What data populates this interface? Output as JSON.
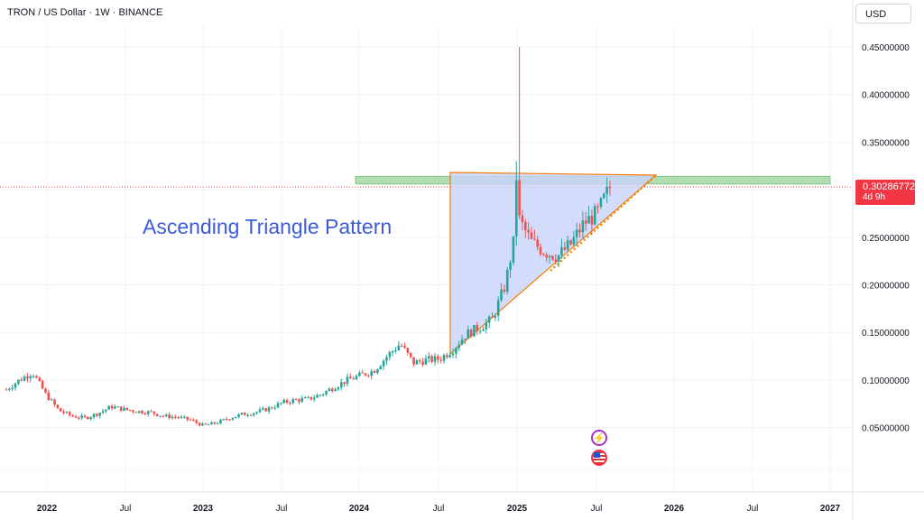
{
  "header": {
    "title": "TRON / US Dollar · 1W · BINANCE"
  },
  "currency": {
    "label": "USD"
  },
  "annotation": {
    "text": "Ascending Triangle Pattern"
  },
  "price_tag": {
    "price": "0.30286772",
    "countdown": "4d 9h"
  },
  "icons": {
    "event1": "lightning-icon",
    "event2": "us-flag-icon"
  },
  "colors": {
    "up": "#26a69a",
    "down": "#ef5350",
    "triangle_fill": "#c9d3fb",
    "triangle_line": "#f57c00",
    "resistance": "#81c784",
    "annotation": "#3d5bd9",
    "price_tag": "#f23645"
  },
  "chart_data": {
    "type": "candlestick",
    "title": "TRON / US Dollar · 1W · BINANCE",
    "x_ticks": [
      "2022",
      "Jul",
      "2023",
      "Jul",
      "2024",
      "Jul",
      "2025",
      "Jul",
      "2026",
      "Jul",
      "2027"
    ],
    "y_ticks": [
      "0.05000000",
      "0.10000000",
      "0.15000000",
      "0.20000000",
      "0.25000000",
      "0.30000000",
      "0.35000000",
      "0.40000000",
      "0.45000000"
    ],
    "ylim": [
      0.0,
      0.48
    ],
    "xlim": [
      "2021-09",
      "2027-03"
    ],
    "grid": true,
    "current_price": 0.30286772,
    "resistance_zone": [
      0.306,
      0.314
    ],
    "triangle": {
      "apex": [
        "2025-11",
        0.31
      ],
      "top_left": [
        "2024-08",
        0.31
      ],
      "bottom_left": [
        "2024-08",
        0.12
      ]
    },
    "close_series": [
      [
        "2021-09",
        0.09
      ],
      [
        "2021-10",
        0.1
      ],
      [
        "2021-11",
        0.108
      ],
      [
        "2021-12",
        0.085
      ],
      [
        "2022-01",
        0.068
      ],
      [
        "2022-02",
        0.062
      ],
      [
        "2022-03",
        0.06
      ],
      [
        "2022-04",
        0.065
      ],
      [
        "2022-05",
        0.072
      ],
      [
        "2022-06",
        0.069
      ],
      [
        "2022-07",
        0.067
      ],
      [
        "2022-08",
        0.066
      ],
      [
        "2022-09",
        0.062
      ],
      [
        "2022-10",
        0.061
      ],
      [
        "2022-11",
        0.058
      ],
      [
        "2022-12",
        0.052
      ],
      [
        "2023-01",
        0.055
      ],
      [
        "2023-02",
        0.06
      ],
      [
        "2023-03",
        0.064
      ],
      [
        "2023-04",
        0.066
      ],
      [
        "2023-05",
        0.07
      ],
      [
        "2023-06",
        0.076
      ],
      [
        "2023-07",
        0.079
      ],
      [
        "2023-08",
        0.08
      ],
      [
        "2023-09",
        0.085
      ],
      [
        "2023-10",
        0.093
      ],
      [
        "2023-11",
        0.1
      ],
      [
        "2023-12",
        0.105
      ],
      [
        "2024-01",
        0.11
      ],
      [
        "2024-02",
        0.125
      ],
      [
        "2024-03",
        0.138
      ],
      [
        "2024-04",
        0.118
      ],
      [
        "2024-05",
        0.121
      ],
      [
        "2024-06",
        0.122
      ],
      [
        "2024-07",
        0.132
      ],
      [
        "2024-08",
        0.148
      ],
      [
        "2024-09",
        0.155
      ],
      [
        "2024-10",
        0.163
      ],
      [
        "2024-11",
        0.2
      ],
      [
        "2024-12",
        0.27
      ],
      [
        "2025-01",
        0.245
      ],
      [
        "2025-02",
        0.235
      ],
      [
        "2025-03",
        0.23
      ],
      [
        "2025-04",
        0.243
      ],
      [
        "2025-05",
        0.265
      ],
      [
        "2025-06",
        0.275
      ],
      [
        "2025-07",
        0.303
      ]
    ]
  }
}
